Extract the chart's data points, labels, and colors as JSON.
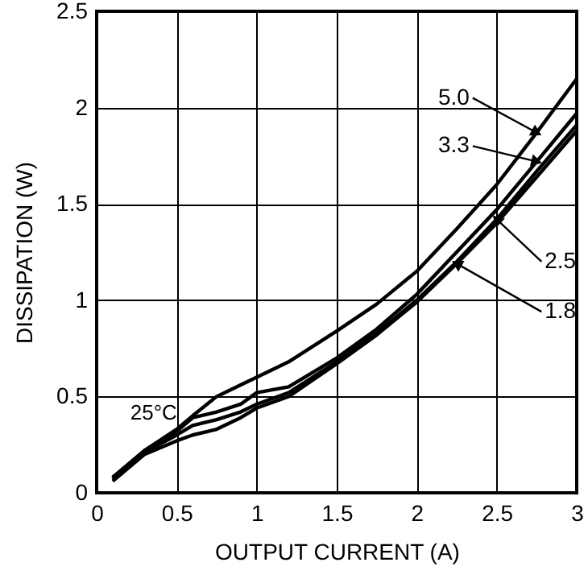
{
  "chart_data": {
    "type": "line",
    "xlabel": "OUTPUT CURRENT (A)",
    "ylabel": "DISSIPATION (W)",
    "annotations": [
      "25°C"
    ],
    "xlim": [
      0,
      3
    ],
    "xticks": [
      0,
      0.5,
      1,
      1.5,
      2,
      2.5,
      3
    ],
    "ylim": [
      0,
      2.5
    ],
    "yticks": [
      0,
      0.5,
      1,
      1.5,
      2,
      2.5
    ],
    "grid": true,
    "marker": "none",
    "line_style": "solid",
    "x": [
      0.1,
      0.3,
      0.5,
      0.6,
      0.75,
      0.9,
      1.0,
      1.2,
      1.5,
      1.75,
      2,
      2.25,
      2.5,
      2.75,
      3
    ],
    "series": [
      {
        "name": "5.0",
        "color": "#000000",
        "values": [
          0.08,
          0.22,
          0.33,
          0.4,
          0.5,
          0.56,
          0.6,
          0.68,
          0.84,
          0.98,
          1.15,
          1.37,
          1.6,
          1.87,
          2.15
        ]
      },
      {
        "name": "3.3",
        "color": "#000000",
        "values": [
          0.08,
          0.22,
          0.32,
          0.39,
          0.42,
          0.46,
          0.52,
          0.55,
          0.7,
          0.85,
          1.03,
          1.25,
          1.47,
          1.72,
          1.97
        ]
      },
      {
        "name": "2.5",
        "color": "#000000",
        "values": [
          0.07,
          0.21,
          0.3,
          0.35,
          0.38,
          0.42,
          0.46,
          0.52,
          0.68,
          0.83,
          1.0,
          1.2,
          1.42,
          1.67,
          1.91
        ]
      },
      {
        "name": "1.8",
        "color": "#000000",
        "values": [
          0.06,
          0.2,
          0.27,
          0.3,
          0.33,
          0.39,
          0.44,
          0.5,
          0.67,
          0.82,
          0.99,
          1.19,
          1.4,
          1.64,
          1.88
        ]
      }
    ]
  }
}
